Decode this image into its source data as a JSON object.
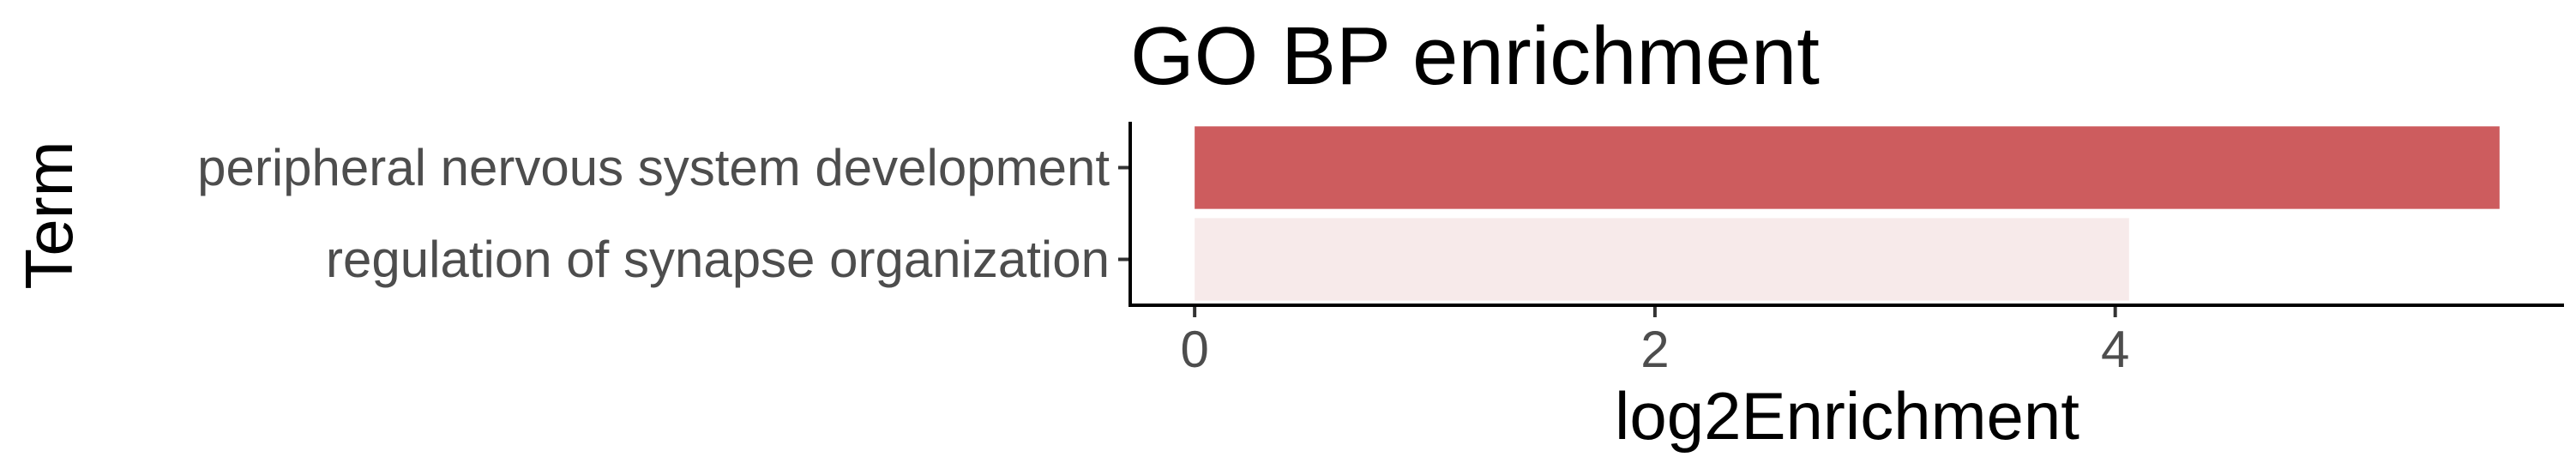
{
  "chart_data": {
    "type": "bar",
    "orientation": "horizontal",
    "title": "GO BP enrichment",
    "xlabel": "log2Enrichment",
    "ylabel": "Term",
    "categories": [
      "peripheral nervous system development",
      "regulation of synapse organization"
    ],
    "values": [
      5.67,
      4.06
    ],
    "bar_colors": [
      "#cd5c5e",
      "#f7eaea"
    ],
    "xticks": [
      0,
      2,
      4
    ],
    "xlim": [
      -0.28,
      5.95
    ],
    "grid": false,
    "legend": "none"
  }
}
